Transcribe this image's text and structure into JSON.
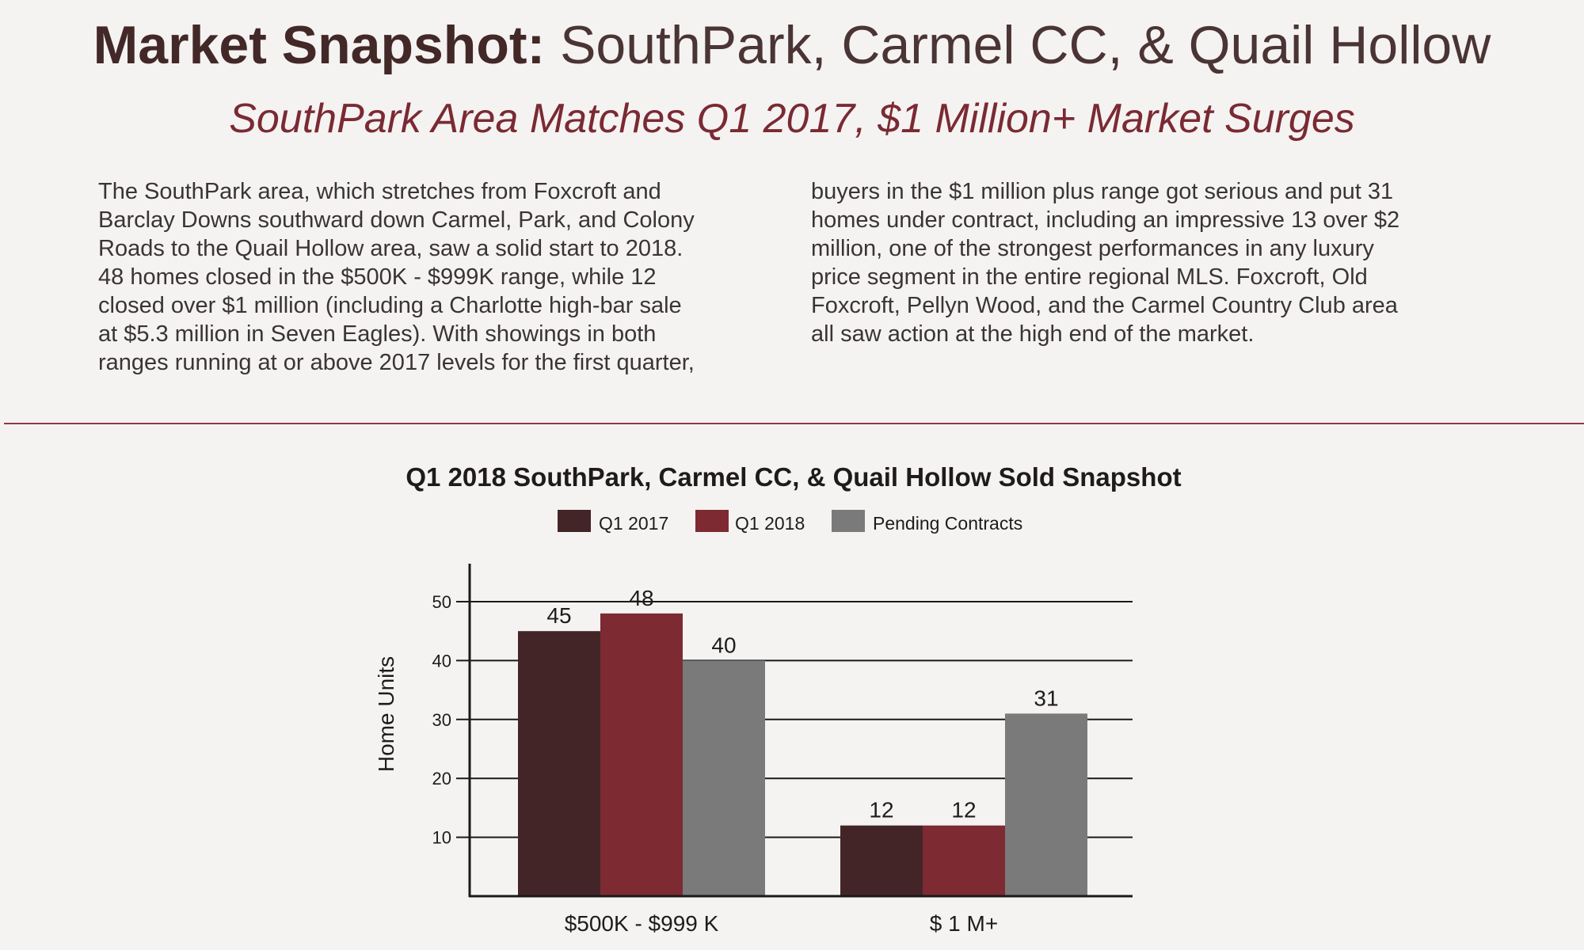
{
  "heading": {
    "title_bold": "Market Snapshot:",
    "title_rest": " SouthPark, Carmel CC, & Quail Hollow",
    "subtitle": "SouthPark Area Matches Q1 2017, $1 Million+ Market Surges"
  },
  "body": {
    "left_lines": [
      "The SouthPark area, which stretches from Foxcroft and",
      "Barclay Downs southward down Carmel, Park, and Colony",
      "Roads to the Quail Hollow area, saw a solid start to 2018.",
      "48 homes closed in the $500K - $999K range, while 12",
      "closed over $1 million (including a Charlotte high-bar sale",
      "at $5.3 million in Seven Eagles). With showings in both",
      "ranges running at or above 2017 levels for the first quarter,"
    ],
    "right_lines": [
      "buyers in the $1 million plus range got serious and put 31",
      "homes under contract, including an impressive 13 over $2",
      "million, one of the strongest performances in any luxury",
      "price segment in the entire regional MLS. Foxcroft, Old",
      "Foxcroft, Pellyn Wood, and the Carmel Country Club area",
      "all saw action at the high end of the market."
    ]
  },
  "chart_data": {
    "type": "bar",
    "title": "Q1 2018 SouthPark, Carmel CC, & Quail Hollow Sold Snapshot",
    "xlabel": "",
    "ylabel": "Home Units",
    "categories": [
      "$500K - $999 K",
      "$ 1 M+"
    ],
    "series": [
      {
        "name": "Q1 2017",
        "values": [
          45,
          12
        ],
        "color": "#432528"
      },
      {
        "name": "Q1 2018",
        "values": [
          48,
          12
        ],
        "color": "#7d2a33"
      },
      {
        "name": "Pending Contracts",
        "values": [
          40,
          31
        ],
        "color": "#7a7a7a"
      }
    ],
    "y_ticks": [
      10,
      20,
      30,
      40,
      50
    ],
    "ylim": [
      0,
      55
    ],
    "grid": true,
    "legend_position": "top-center"
  }
}
